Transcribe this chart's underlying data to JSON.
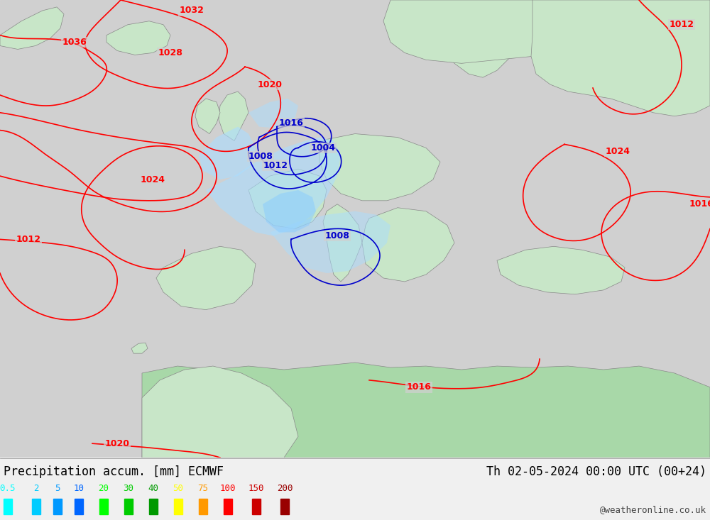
{
  "title_left": "Precipitation accum. [mm] ECMWF",
  "title_right": "Th 02-05-2024 00:00 UTC (00+24)",
  "watermark": "@weatheronline.co.uk",
  "legend_values": [
    "0.5",
    "2",
    "5",
    "10",
    "20",
    "30",
    "40",
    "50",
    "75",
    "100",
    "150",
    "200"
  ],
  "legend_colors": [
    "#00ffff",
    "#00ccff",
    "#0099ff",
    "#0066ff",
    "#00ff00",
    "#00cc00",
    "#009900",
    "#ffff00",
    "#ff9900",
    "#ff0000",
    "#cc0000",
    "#990000"
  ],
  "background_map_color": "#d0d0d0",
  "land_color_light": "#c8e6c8",
  "land_color_medium": "#a8d8a8",
  "sea_color": "#e8f4f8",
  "precip_color_light": "#aaddff",
  "precip_color_medium": "#88ccff",
  "pressure_line_color_red": "#ff0000",
  "pressure_line_color_blue": "#0000cc",
  "coast_color": "#888888",
  "bottom_bar_color": "#f0f0f0",
  "figsize": [
    10.0,
    7.33
  ],
  "dpi": 100
}
